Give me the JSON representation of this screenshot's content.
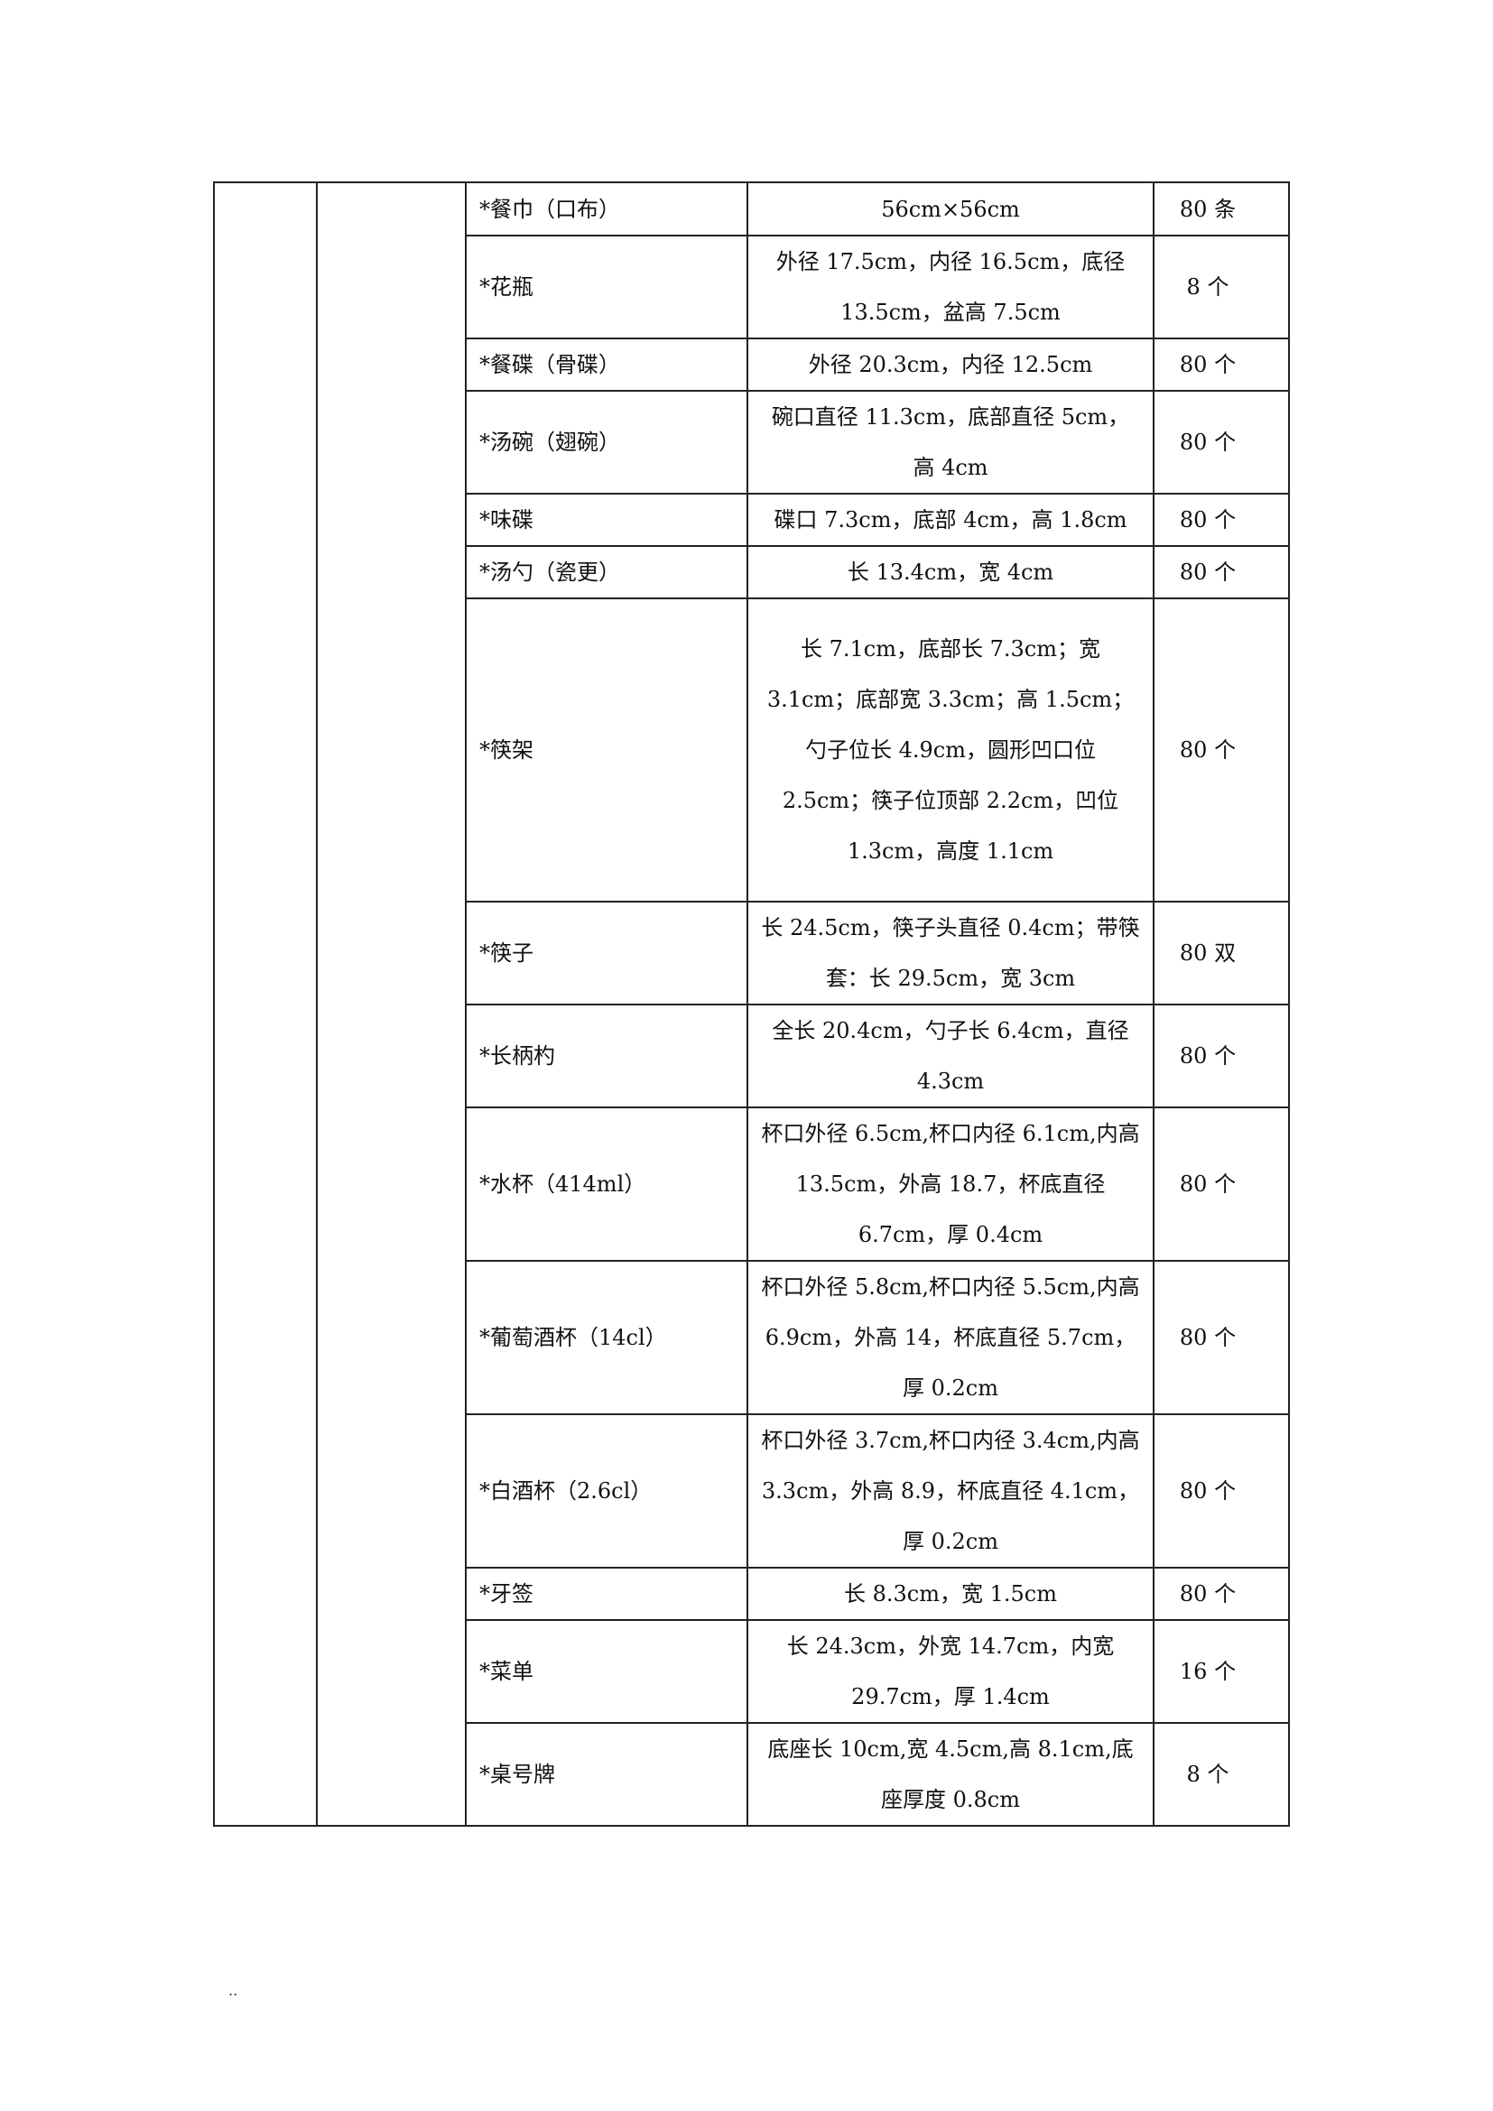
{
  "items": [
    {
      "name": "*餐巾（口布）",
      "spec": "56cm×56cm",
      "qty": "80 条"
    },
    {
      "name": "*花瓶",
      "spec": "外径 17.5cm，内径 16.5cm，底径 13.5cm，盆高 7.5cm",
      "qty": "8 个"
    },
    {
      "name": "*餐碟（骨碟）",
      "spec": "外径 20.3cm，内径 12.5cm",
      "qty": "80 个"
    },
    {
      "name": "*汤碗（翅碗）",
      "spec": "碗口直径 11.3cm，底部直径 5cm，高 4cm",
      "qty": "80 个"
    },
    {
      "name": "*味碟",
      "spec": "碟口 7.3cm，底部 4cm，高 1.8cm",
      "qty": "80 个"
    },
    {
      "name": "*汤勺（瓷更）",
      "spec": "长 13.4cm，宽 4cm",
      "qty": "80 个"
    },
    {
      "name": "*筷架",
      "spec": "长 7.1cm，底部长 7.3cm；宽 3.1cm；底部宽 3.3cm；高 1.5cm；勺子位长 4.9cm，圆形凹口位 2.5cm；筷子位顶部 2.2cm，凹位 1.3cm，高度 1.1cm",
      "qty": "80 个"
    },
    {
      "name": "*筷子",
      "spec": "长 24.5cm，筷子头直径 0.4cm；带筷套：长 29.5cm，宽 3cm",
      "qty": "80 双"
    },
    {
      "name": "*长柄杓",
      "spec": "全长 20.4cm，勺子长 6.4cm，直径 4.3cm",
      "qty": "80 个"
    },
    {
      "name": "*水杯（414ml）",
      "spec": "杯口外径 6.5cm,杯口内径 6.1cm,内高 13.5cm，外高 18.7，杯底直径 6.7cm，厚 0.4cm",
      "qty": "80 个"
    },
    {
      "name": "*葡萄酒杯（14cl）",
      "spec": "杯口外径 5.8cm,杯口内径 5.5cm,内高 6.9cm，外高 14，杯底直径 5.7cm，厚 0.2cm",
      "qty": "80 个"
    },
    {
      "name": "*白酒杯（2.6cl）",
      "spec": "杯口外径 3.7cm,杯口内径 3.4cm,内高 3.3cm，外高 8.9，杯底直径 4.1cm，厚 0.2cm",
      "qty": "80 个"
    },
    {
      "name": "*牙签",
      "spec": "长 8.3cm，宽 1.5cm",
      "qty": "80 个"
    },
    {
      "name": "*菜单",
      "spec": "长 24.3cm，外宽 14.7cm，内宽 29.7cm，厚 1.4cm",
      "qty": "16 个"
    },
    {
      "name": "*桌号牌",
      "spec": "底座长 10cm,宽 4.5cm,高 8.1cm,底座厚度 0.8cm",
      "qty": "8 个"
    }
  ],
  "footer": ".."
}
